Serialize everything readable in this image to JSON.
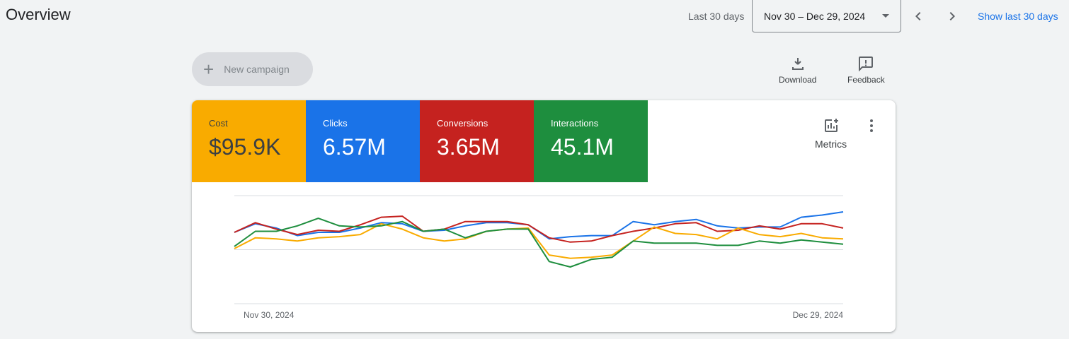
{
  "header": {
    "title": "Overview",
    "range_label": "Last 30 days",
    "date_range": "Nov 30 – Dec 29, 2024",
    "show_last_label": "Show last 30 days",
    "prev_icon": "chevron-left-icon",
    "next_icon": "chevron-right-icon"
  },
  "toolbar": {
    "new_campaign_label": "New campaign",
    "download_label": "Download",
    "feedback_label": "Feedback"
  },
  "scorecards": [
    {
      "label": "Cost",
      "value": "$95.9K",
      "color": "#f9ab00"
    },
    {
      "label": "Clicks",
      "value": "6.57M",
      "color": "#1a73e8"
    },
    {
      "label": "Conversions",
      "value": "3.65M",
      "color": "#c5221f"
    },
    {
      "label": "Interactions",
      "value": "45.1M",
      "color": "#1e8e3e"
    }
  ],
  "metrics_label": "Metrics",
  "chart_data": {
    "type": "line",
    "x_start_label": "Nov 30, 2024",
    "x_end_label": "Dec 29, 2024",
    "grid": true,
    "series": [
      {
        "color": "#1a73e8",
        "values": [
          0.66,
          0.74,
          0.7,
          0.63,
          0.66,
          0.66,
          0.7,
          0.75,
          0.74,
          0.67,
          0.68,
          0.72,
          0.75,
          0.75,
          0.73,
          0.6,
          0.62,
          0.63,
          0.63,
          0.76,
          0.73,
          0.76,
          0.78,
          0.72,
          0.7,
          0.71,
          0.71,
          0.8,
          0.82,
          0.85
        ]
      },
      {
        "color": "#c5221f",
        "values": [
          0.66,
          0.75,
          0.69,
          0.64,
          0.68,
          0.67,
          0.73,
          0.8,
          0.81,
          0.67,
          0.69,
          0.76,
          0.76,
          0.76,
          0.73,
          0.61,
          0.57,
          0.58,
          0.63,
          0.67,
          0.7,
          0.74,
          0.75,
          0.67,
          0.68,
          0.72,
          0.69,
          0.74,
          0.74,
          0.7
        ]
      },
      {
        "color": "#f9ab00",
        "values": [
          0.51,
          0.61,
          0.6,
          0.58,
          0.61,
          0.62,
          0.64,
          0.74,
          0.69,
          0.61,
          0.58,
          0.6,
          0.67,
          0.69,
          0.7,
          0.45,
          0.42,
          0.43,
          0.45,
          0.58,
          0.71,
          0.65,
          0.64,
          0.6,
          0.7,
          0.64,
          0.62,
          0.65,
          0.61,
          0.6
        ]
      },
      {
        "color": "#1e8e3e",
        "values": [
          0.53,
          0.67,
          0.67,
          0.72,
          0.79,
          0.72,
          0.71,
          0.72,
          0.76,
          0.67,
          0.69,
          0.61,
          0.67,
          0.69,
          0.69,
          0.39,
          0.34,
          0.41,
          0.43,
          0.58,
          0.56,
          0.56,
          0.56,
          0.54,
          0.54,
          0.58,
          0.56,
          0.59,
          0.57,
          0.55
        ]
      }
    ]
  }
}
